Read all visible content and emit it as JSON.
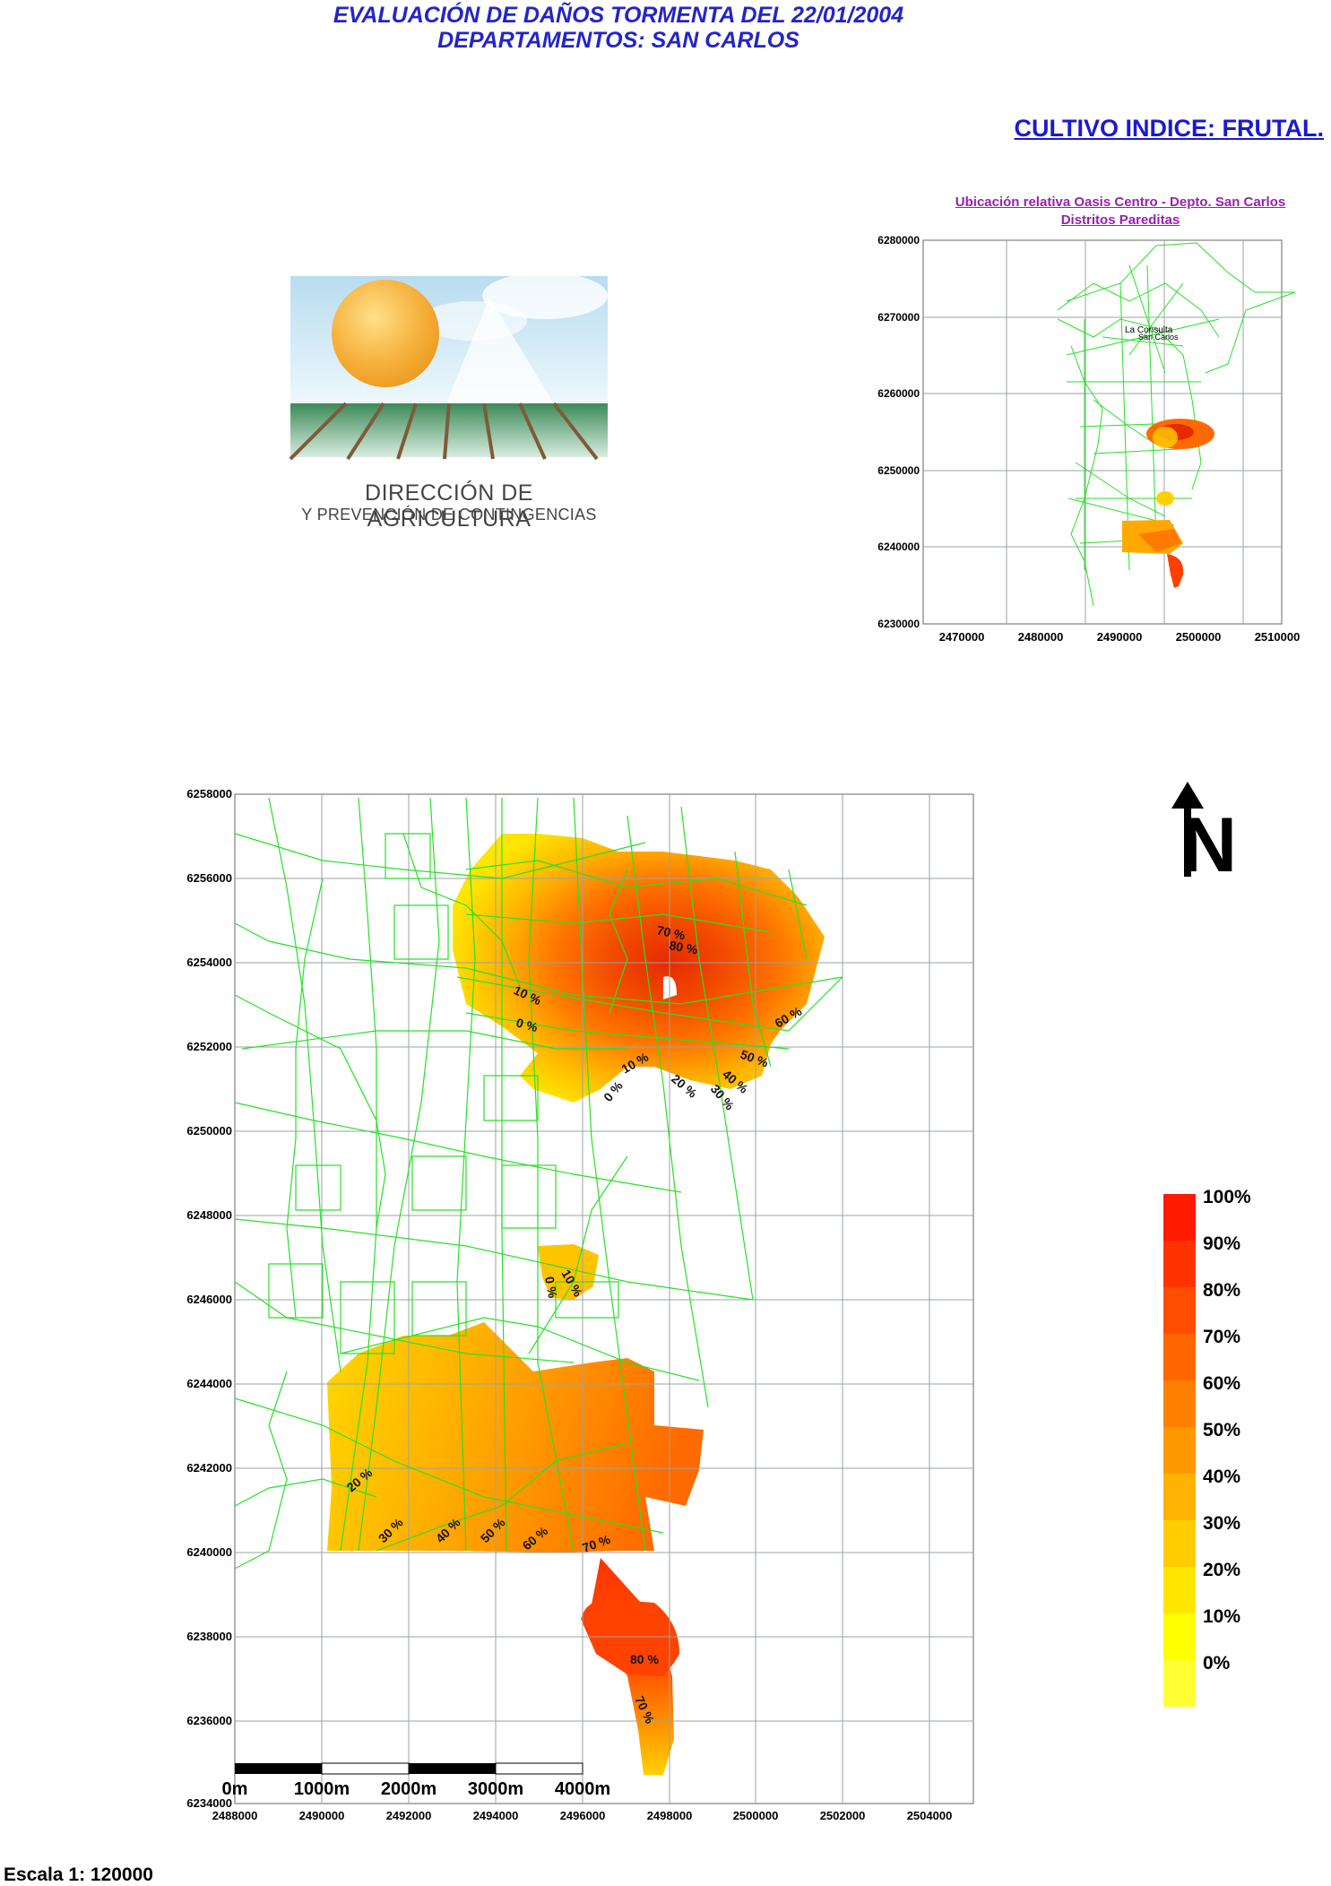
{
  "header": {
    "title_line1": "EVALUACIÓN DE DAÑOS TORMENTA DEL 22/01/2004",
    "title_line2": "DEPARTAMENTOS: SAN CARLOS"
  },
  "crop_label": "CULTIVO INDICE: FRUTAL.",
  "logo": {
    "line1": "DIRECCIÓN DE AGRICULTURA",
    "line2": "Y PREVENCIÓN DE CONTINGENCIAS"
  },
  "inset": {
    "title_line1": "Ubicación relativa Oasis Centro - Depto. San Carlos",
    "title_line2": "Distritos  Pareditas",
    "y_ticks": [
      "6280000",
      "6270000",
      "6260000",
      "6250000",
      "6240000",
      "6230000"
    ],
    "x_ticks": [
      "2470000",
      "2480000",
      "2490000",
      "2500000",
      "2510000"
    ],
    "place_labels": [
      "La Consulta",
      "San Carlos"
    ]
  },
  "main_map": {
    "y_ticks": [
      "6258000",
      "6256000",
      "6254000",
      "6252000",
      "6250000",
      "6248000",
      "6246000",
      "6244000",
      "6242000",
      "6240000",
      "6238000",
      "6236000",
      "6234000"
    ],
    "x_ticks": [
      "2488000",
      "2490000",
      "2492000",
      "2494000",
      "2496000",
      "2498000",
      "2500000",
      "2502000",
      "2504000"
    ],
    "contour_labels": [
      "70 %",
      "80 %",
      "10 %",
      "0 %",
      "60 %",
      "50 %",
      "40 %",
      "30 %",
      "20 %",
      "10 %",
      "0 %",
      "0 %",
      "10 %",
      "20 %",
      "30 %",
      "40 %",
      "50 %",
      "60 %",
      "70 %",
      "80 %",
      "70 %"
    ]
  },
  "scale_bar": {
    "labels": [
      "0m",
      "1000m",
      "2000m",
      "3000m",
      "4000m"
    ],
    "text": "Escala 1: 120000"
  },
  "north_arrow": {
    "letter": "N"
  },
  "legend": {
    "labels": [
      "100%",
      "90%",
      "80%",
      "70%",
      "60%",
      "50%",
      "40%",
      "30%",
      "20%",
      "10%",
      "0%"
    ],
    "colors": [
      "#ff1a00",
      "#ff3300",
      "#ff4d00",
      "#ff6600",
      "#ff8000",
      "#ff9900",
      "#ffb300",
      "#ffcc00",
      "#ffe600",
      "#ffff00",
      "#ffff33"
    ]
  },
  "colors": {
    "roads": "#27e027",
    "grid": "#9aa3a3"
  }
}
